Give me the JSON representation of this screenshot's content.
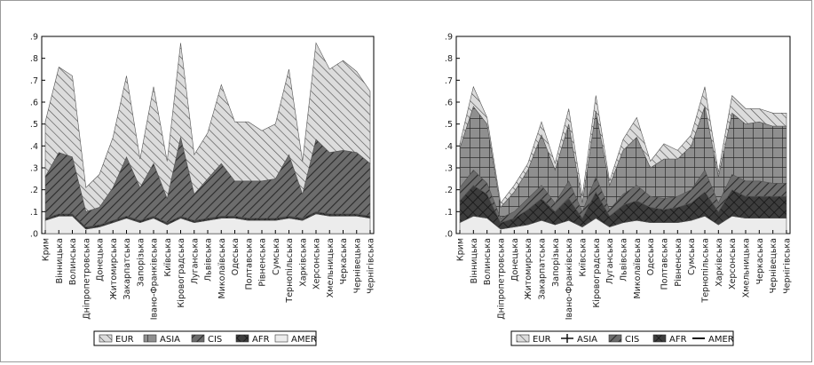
{
  "chart_data": [
    {
      "type": "area",
      "stacked": true,
      "ylim": [
        0,
        0.9
      ],
      "yticks": [
        ".0",
        ".1",
        ".2",
        ".3",
        ".4",
        ".5",
        ".6",
        ".7",
        ".8",
        ".9"
      ],
      "grid": false,
      "legend": "bottom",
      "categories": [
        "Крим",
        "Вінницька",
        "Волинська",
        "Дніпропетровська",
        "Донецька",
        "Житомирська",
        "Закарпатська",
        "Запорізька",
        "Івано-Франківська",
        "Київська",
        "Кіровоградська",
        "Луганська",
        "Львівська",
        "Миколаївська",
        "Одеська",
        "Полтавська",
        "Рівненська",
        "Сумська",
        "Тернопільська",
        "Харківська",
        "Херсонська",
        "Хмельницька",
        "Черкаська",
        "Чернівецька",
        "Чернігівська"
      ],
      "series": [
        {
          "name": "AMER",
          "values": [
            0.06,
            0.08,
            0.08,
            0.02,
            0.03,
            0.05,
            0.07,
            0.05,
            0.07,
            0.04,
            0.07,
            0.05,
            0.06,
            0.07,
            0.07,
            0.06,
            0.06,
            0.06,
            0.07,
            0.06,
            0.09,
            0.08,
            0.08,
            0.08,
            0.07
          ]
        },
        {
          "name": "AFR",
          "values": [
            0.01,
            0.01,
            0.01,
            0.01,
            0.01,
            0.01,
            0.01,
            0.01,
            0.01,
            0.01,
            0.01,
            0.01,
            0.01,
            0.01,
            0.01,
            0.01,
            0.01,
            0.01,
            0.01,
            0.01,
            0.01,
            0.01,
            0.01,
            0.01,
            0.01
          ]
        },
        {
          "name": "CIS",
          "values": [
            0.19,
            0.28,
            0.26,
            0.07,
            0.08,
            0.15,
            0.27,
            0.15,
            0.24,
            0.11,
            0.36,
            0.12,
            0.18,
            0.24,
            0.16,
            0.17,
            0.17,
            0.18,
            0.28,
            0.11,
            0.33,
            0.28,
            0.29,
            0.28,
            0.24
          ]
        },
        {
          "name": "ASIA",
          "values": [
            0.0,
            0.0,
            0.0,
            0.0,
            0.0,
            0.0,
            0.0,
            0.0,
            0.0,
            0.0,
            0.0,
            0.0,
            0.0,
            0.0,
            0.0,
            0.0,
            0.0,
            0.0,
            0.0,
            0.0,
            0.0,
            0.0,
            0.0,
            0.0,
            0.0
          ]
        },
        {
          "name": "EUR",
          "values": [
            0.25,
            0.39,
            0.37,
            0.11,
            0.15,
            0.23,
            0.37,
            0.13,
            0.35,
            0.17,
            0.43,
            0.18,
            0.21,
            0.36,
            0.27,
            0.27,
            0.23,
            0.25,
            0.39,
            0.15,
            0.44,
            0.38,
            0.41,
            0.37,
            0.33
          ]
        }
      ]
    },
    {
      "type": "area",
      "stacked": true,
      "ylim": [
        0,
        0.9
      ],
      "yticks": [
        ".0",
        ".1",
        ".2",
        ".3",
        ".4",
        ".5",
        ".6",
        ".7",
        ".8",
        ".9"
      ],
      "grid": false,
      "legend": "bottom",
      "categories": [
        "Крим",
        "Вінницька",
        "Волинська",
        "Дніпропетровська",
        "Донецька",
        "Житомирська",
        "Закарпатська",
        "Запорізька",
        "Івано-Франківська",
        "Київська",
        "Кіровоградська",
        "Луганська",
        "Львівська",
        "Миколаївська",
        "Одеська",
        "Полтавська",
        "Рівненська",
        "Сумська",
        "Тернопільська",
        "Харківська",
        "Херсонська",
        "Хмельницька",
        "Черкаська",
        "Чернівецька",
        "Чернігівська"
      ],
      "series": [
        {
          "name": "AMER",
          "values": [
            0.05,
            0.08,
            0.07,
            0.02,
            0.03,
            0.04,
            0.06,
            0.04,
            0.06,
            0.03,
            0.07,
            0.03,
            0.05,
            0.06,
            0.05,
            0.05,
            0.05,
            0.06,
            0.08,
            0.04,
            0.08,
            0.07,
            0.07,
            0.07,
            0.07
          ]
        },
        {
          "name": "AFR",
          "values": [
            0.1,
            0.14,
            0.11,
            0.03,
            0.04,
            0.07,
            0.1,
            0.06,
            0.1,
            0.04,
            0.12,
            0.05,
            0.08,
            0.09,
            0.07,
            0.06,
            0.07,
            0.08,
            0.11,
            0.06,
            0.12,
            0.1,
            0.1,
            0.1,
            0.1
          ]
        },
        {
          "name": "CIS",
          "values": [
            0.06,
            0.07,
            0.05,
            0.02,
            0.03,
            0.05,
            0.06,
            0.04,
            0.08,
            0.03,
            0.07,
            0.03,
            0.05,
            0.07,
            0.05,
            0.05,
            0.05,
            0.06,
            0.1,
            0.04,
            0.07,
            0.07,
            0.07,
            0.06,
            0.06
          ]
        },
        {
          "name": "ASIA",
          "values": [
            0.18,
            0.29,
            0.27,
            0.05,
            0.09,
            0.13,
            0.23,
            0.15,
            0.26,
            0.04,
            0.3,
            0.11,
            0.2,
            0.22,
            0.13,
            0.18,
            0.17,
            0.2,
            0.29,
            0.12,
            0.28,
            0.26,
            0.27,
            0.26,
            0.26
          ]
        },
        {
          "name": "EUR",
          "values": [
            0.02,
            0.09,
            0.03,
            0.02,
            0.03,
            0.03,
            0.06,
            0.03,
            0.07,
            0.03,
            0.07,
            0.02,
            0.05,
            0.09,
            0.03,
            0.07,
            0.04,
            0.05,
            0.09,
            0.02,
            0.08,
            0.07,
            0.06,
            0.06,
            0.06
          ]
        }
      ]
    }
  ],
  "legend_labels": [
    "EUR",
    "ASIA",
    "CIS",
    "AFR",
    "AMER"
  ]
}
